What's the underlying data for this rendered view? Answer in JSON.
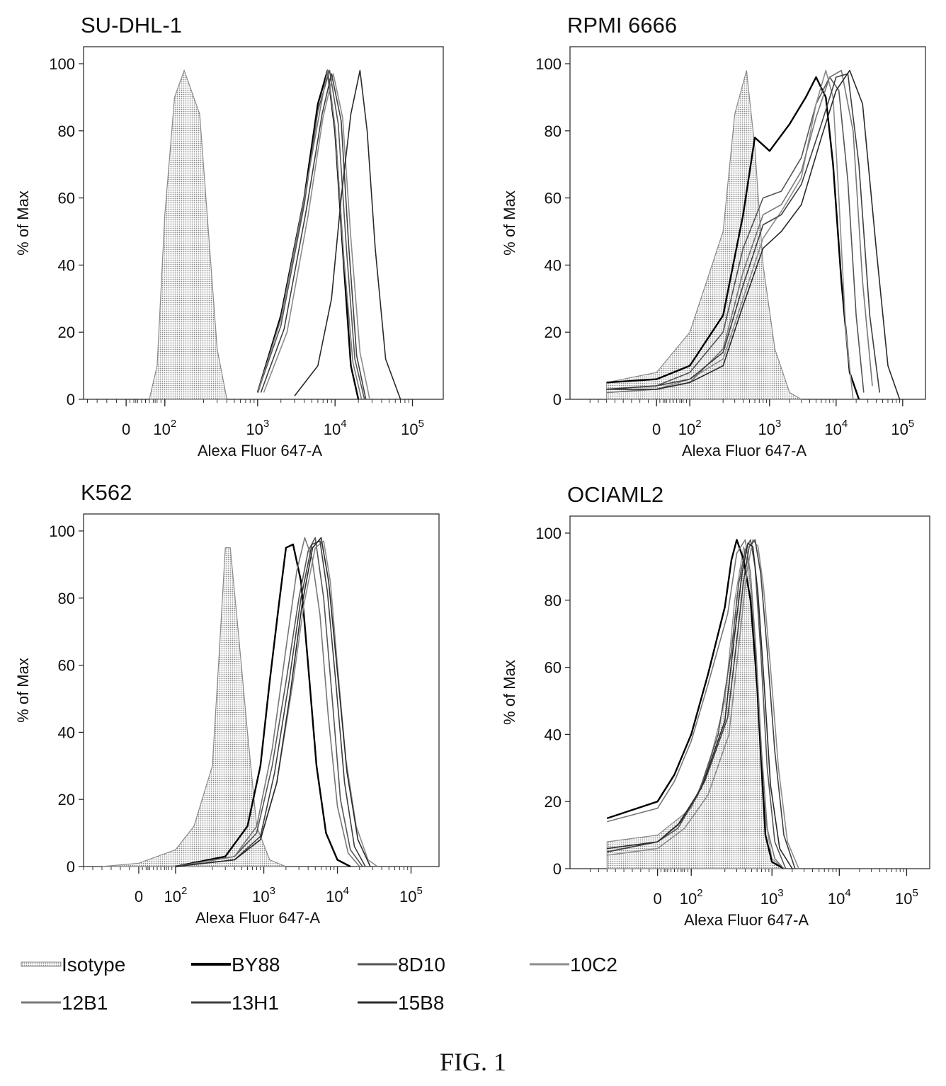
{
  "figure": {
    "caption": "FIG. 1"
  },
  "chart_data": [
    {
      "type": "area",
      "title": "SU-DHL-1",
      "xlabel": "Alexa Fluor 647-A",
      "ylabel": "% of Max",
      "x_scale": "biexponential",
      "ylim": [
        0,
        100
      ],
      "yticks": [
        "0",
        "20",
        "40",
        "60",
        "80",
        "100"
      ],
      "xticks": [
        "0",
        "10^2",
        "10^3",
        "10^4",
        "10^5"
      ],
      "series": [
        {
          "name": "Isotype",
          "x": [
            60,
            80,
            100,
            125,
            150,
            190,
            240,
            300,
            400
          ],
          "y": [
            0,
            10,
            55,
            90,
            98,
            85,
            45,
            15,
            0
          ]
        },
        {
          "name": "BY88",
          "x": [
            1000,
            2000,
            4000,
            6000,
            8000,
            10000,
            13000,
            16000,
            20000
          ],
          "y": [
            2,
            25,
            60,
            88,
            98,
            80,
            40,
            10,
            0
          ]
        },
        {
          "name": "8D10",
          "x": [
            1000,
            2000,
            4000,
            6000,
            8500,
            11000,
            14000,
            18000,
            24000
          ],
          "y": [
            2,
            22,
            58,
            86,
            98,
            82,
            45,
            12,
            0
          ]
        },
        {
          "name": "10C2",
          "x": [
            1200,
            2400,
            4500,
            7000,
            9500,
            12500,
            16000,
            21000,
            28000
          ],
          "y": [
            2,
            20,
            55,
            84,
            97,
            84,
            48,
            14,
            0
          ]
        },
        {
          "name": "12B1",
          "x": [
            1000,
            2000,
            4000,
            6500,
            8000,
            10000,
            13000,
            17000,
            22000
          ],
          "y": [
            2,
            24,
            60,
            87,
            98,
            81,
            42,
            11,
            0
          ]
        },
        {
          "name": "13H1",
          "x": [
            1100,
            2200,
            4300,
            6800,
            9000,
            12000,
            15000,
            19000,
            25000
          ],
          "y": [
            2,
            21,
            57,
            85,
            97,
            83,
            46,
            13,
            0
          ]
        },
        {
          "name": "15B8",
          "x": [
            3000,
            6000,
            9000,
            12000,
            16000,
            21000,
            26000,
            33000,
            45000,
            70000
          ],
          "y": [
            1,
            10,
            30,
            60,
            85,
            98,
            80,
            45,
            12,
            0
          ]
        }
      ]
    },
    {
      "type": "area",
      "title": "RPMI 6666",
      "xlabel": "Alexa Fluor 647-A",
      "ylabel": "% of Max",
      "x_scale": "biexponential",
      "ylim": [
        0,
        100
      ],
      "yticks": [
        "0",
        "20",
        "40",
        "60",
        "80",
        "100"
      ],
      "xticks": [
        "0",
        "10^2",
        "10^3",
        "10^4",
        "10^5"
      ],
      "series": [
        {
          "name": "Isotype",
          "x": [
            -150,
            0,
            100,
            200,
            300,
            450,
            600,
            800,
            1200,
            2000,
            3000
          ],
          "y": [
            5,
            8,
            20,
            50,
            85,
            98,
            75,
            40,
            15,
            2,
            0
          ]
        },
        {
          "name": "BY88",
          "x": [
            -150,
            0,
            100,
            200,
            400,
            600,
            1000,
            2000,
            3500,
            5000,
            7000,
            9000,
            12000,
            16000,
            22000
          ],
          "y": [
            5,
            6,
            10,
            25,
            55,
            78,
            74,
            82,
            90,
            96,
            90,
            70,
            35,
            8,
            0
          ]
        },
        {
          "name": "8D10",
          "x": [
            -150,
            0,
            100,
            200,
            400,
            800,
            1500,
            3000,
            5000,
            8000,
            11000,
            15000,
            20000,
            26000
          ],
          "y": [
            3,
            4,
            8,
            20,
            45,
            60,
            62,
            72,
            88,
            96,
            92,
            65,
            25,
            2
          ]
        },
        {
          "name": "10C2",
          "x": [
            -150,
            0,
            100,
            200,
            400,
            800,
            1500,
            3000,
            5000,
            7000,
            9000,
            11000,
            14000,
            18000
          ],
          "y": [
            2,
            3,
            6,
            12,
            30,
            48,
            56,
            66,
            88,
            98,
            90,
            60,
            20,
            0
          ]
        },
        {
          "name": "12B1",
          "x": [
            -150,
            0,
            100,
            200,
            400,
            800,
            1500,
            3000,
            5000,
            8000,
            12000,
            18000,
            25000,
            35000
          ],
          "y": [
            2,
            3,
            5,
            15,
            38,
            55,
            58,
            68,
            84,
            96,
            98,
            80,
            35,
            4
          ]
        },
        {
          "name": "13H1",
          "x": [
            -150,
            0,
            100,
            200,
            400,
            800,
            1500,
            3000,
            6000,
            10000,
            15000,
            22000,
            32000,
            45000
          ],
          "y": [
            3,
            4,
            6,
            14,
            34,
            52,
            55,
            64,
            82,
            96,
            97,
            70,
            25,
            2
          ]
        },
        {
          "name": "15B8",
          "x": [
            -150,
            0,
            100,
            200,
            400,
            800,
            1500,
            3000,
            6000,
            10000,
            16000,
            25000,
            40000,
            60000,
            90000
          ],
          "y": [
            3,
            3,
            5,
            10,
            28,
            45,
            50,
            58,
            78,
            92,
            98,
            88,
            45,
            10,
            0
          ]
        }
      ]
    },
    {
      "type": "area",
      "title": "K562",
      "xlabel": "Alexa Fluor 647-A",
      "ylabel": "% of Max",
      "x_scale": "biexponential",
      "ylim": [
        0,
        100
      ],
      "yticks": [
        "0",
        "20",
        "40",
        "60",
        "80",
        "100"
      ],
      "xticks": [
        "0",
        "10^2",
        "10^3",
        "10^4",
        "10^5"
      ],
      "series": [
        {
          "name": "Isotype",
          "x": [
            -100,
            0,
            100,
            150,
            200,
            250,
            300,
            350,
            450,
            600,
            800,
            1200,
            2000
          ],
          "y": [
            0,
            1,
            5,
            12,
            30,
            65,
            95,
            95,
            70,
            40,
            12,
            2,
            0
          ]
        },
        {
          "name": "BY88",
          "x": [
            100,
            300,
            600,
            900,
            1200,
            1600,
            2000,
            2500,
            3200,
            4000,
            5200,
            7000,
            10000,
            15000
          ],
          "y": [
            0,
            3,
            12,
            30,
            55,
            78,
            95,
            96,
            85,
            60,
            30,
            10,
            2,
            0
          ]
        },
        {
          "name": "8D10",
          "x": [
            100,
            400,
            800,
            1300,
            2000,
            3000,
            4000,
            5000,
            6500,
            8500,
            11000,
            15000,
            22000
          ],
          "y": [
            0,
            3,
            10,
            30,
            55,
            80,
            94,
            98,
            80,
            50,
            20,
            5,
            0
          ]
        },
        {
          "name": "10C2",
          "x": [
            100,
            400,
            900,
            1500,
            2500,
            3500,
            5000,
            6500,
            8000,
            10000,
            13000,
            18000,
            26000,
            35000
          ],
          "y": [
            0,
            2,
            8,
            25,
            55,
            78,
            95,
            97,
            85,
            60,
            32,
            12,
            2,
            0
          ]
        },
        {
          "name": "12B1",
          "x": [
            100,
            400,
            800,
            1300,
            2000,
            2800,
            3600,
            4500,
            5800,
            7500,
            10000,
            14000,
            20000
          ],
          "y": [
            0,
            3,
            12,
            35,
            65,
            88,
            98,
            92,
            75,
            45,
            18,
            4,
            0
          ]
        },
        {
          "name": "13H1",
          "x": [
            100,
            400,
            900,
            1400,
            2200,
            3200,
            4500,
            5800,
            7300,
            9500,
            12500,
            17000,
            24000
          ],
          "y": [
            0,
            2,
            9,
            28,
            55,
            80,
            96,
            97,
            82,
            55,
            25,
            6,
            0
          ]
        },
        {
          "name": "15B8",
          "x": [
            100,
            400,
            900,
            1500,
            2300,
            3300,
            4600,
            6000,
            7600,
            10000,
            13500,
            19000,
            28000
          ],
          "y": [
            0,
            2,
            8,
            25,
            52,
            78,
            95,
            98,
            85,
            58,
            28,
            8,
            0
          ]
        }
      ]
    },
    {
      "type": "area",
      "title": "OCIAML2",
      "xlabel": "Alexa Fluor 647-A",
      "ylabel": "% of Max",
      "x_scale": "biexponential",
      "ylim": [
        0,
        100
      ],
      "yticks": [
        "0",
        "20",
        "40",
        "60",
        "80",
        "100"
      ],
      "xticks": [
        "0",
        "10^2",
        "10^3",
        "10^4",
        "10^5"
      ],
      "series": [
        {
          "name": "Isotype",
          "x": [
            -150,
            0,
            100,
            150,
            200,
            280,
            380,
            450,
            550,
            650,
            800,
            1000,
            1500
          ],
          "y": [
            8,
            10,
            18,
            30,
            50,
            80,
            96,
            90,
            70,
            40,
            15,
            3,
            0
          ]
        },
        {
          "name": "BY88",
          "x": [
            -150,
            0,
            50,
            100,
            150,
            200,
            250,
            300,
            380,
            480,
            600,
            700,
            800,
            1000,
            1500
          ],
          "y": [
            15,
            20,
            28,
            40,
            58,
            78,
            92,
            98,
            92,
            80,
            55,
            30,
            10,
            2,
            0
          ]
        },
        {
          "name": "8D10",
          "x": [
            -150,
            0,
            60,
            120,
            180,
            250,
            320,
            400,
            480,
            560,
            680,
            850,
            1100,
            1600
          ],
          "y": [
            5,
            8,
            12,
            22,
            40,
            65,
            85,
            95,
            98,
            90,
            65,
            30,
            8,
            0
          ]
        },
        {
          "name": "10C2",
          "x": [
            -150,
            0,
            80,
            150,
            230,
            320,
            420,
            520,
            620,
            750,
            950,
            1250,
            1700,
            2500
          ],
          "y": [
            4,
            6,
            12,
            22,
            40,
            66,
            88,
            98,
            96,
            84,
            60,
            30,
            8,
            0
          ]
        },
        {
          "name": "12B1",
          "x": [
            -150,
            0,
            50,
            100,
            150,
            220,
            300,
            400,
            480,
            580,
            700,
            850,
            1100,
            1500
          ],
          "y": [
            14,
            18,
            26,
            38,
            55,
            76,
            94,
            98,
            88,
            65,
            35,
            12,
            3,
            0
          ]
        },
        {
          "name": "13H1",
          "x": [
            -150,
            0,
            70,
            140,
            220,
            300,
            380,
            460,
            560,
            680,
            850,
            1100,
            1500,
            2200
          ],
          "y": [
            5,
            8,
            14,
            26,
            45,
            68,
            86,
            96,
            98,
            88,
            65,
            35,
            10,
            0
          ]
        },
        {
          "name": "15B8",
          "x": [
            -150,
            0,
            60,
            130,
            200,
            280,
            360,
            440,
            520,
            620,
            760,
            950,
            1300,
            2000
          ],
          "y": [
            6,
            8,
            13,
            24,
            44,
            70,
            88,
            97,
            96,
            82,
            56,
            25,
            6,
            0
          ]
        }
      ]
    }
  ],
  "legend": [
    {
      "name": "Isotype",
      "color": "#9a9a9a",
      "stroke": "#8a8a8a",
      "filled": true
    },
    {
      "name": "BY88",
      "color": "#000000",
      "stroke": "#000000",
      "filled": false
    },
    {
      "name": "8D10",
      "color": "#555555",
      "stroke": "#555555",
      "filled": false
    },
    {
      "name": "10C2",
      "color": "#8c8c8c",
      "stroke": "#8c8c8c",
      "filled": false
    },
    {
      "name": "12B1",
      "color": "#777777",
      "stroke": "#777777",
      "filled": false
    },
    {
      "name": "13H1",
      "color": "#3f3f3f",
      "stroke": "#3f3f3f",
      "filled": false
    },
    {
      "name": "15B8",
      "color": "#2a2a2a",
      "stroke": "#2a2a2a",
      "filled": false
    }
  ]
}
